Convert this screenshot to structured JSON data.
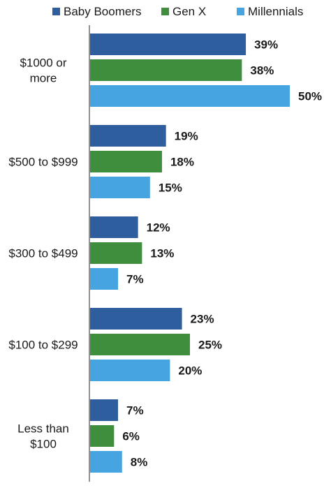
{
  "chart_data": {
    "type": "bar",
    "orientation": "horizontal",
    "title": "",
    "xlabel": "",
    "ylabel": "",
    "xlim": [
      0,
      50
    ],
    "grid": false,
    "legend_position": "top",
    "value_format": "percent",
    "categories": [
      [
        "$1000 or",
        "more"
      ],
      [
        "$500 to $999"
      ],
      [
        "$300 to $499"
      ],
      [
        "$100 to $299"
      ],
      [
        "Less than",
        "$100"
      ]
    ],
    "series": [
      {
        "name": "Baby Boomers",
        "color": "#2e5e9e",
        "values": [
          39,
          19,
          12,
          23,
          7
        ]
      },
      {
        "name": "Gen X",
        "color": "#3e8e3e",
        "values": [
          38,
          18,
          13,
          25,
          6
        ]
      },
      {
        "name": "Millennials",
        "color": "#46a5e0",
        "values": [
          50,
          15,
          7,
          20,
          8
        ]
      }
    ]
  }
}
